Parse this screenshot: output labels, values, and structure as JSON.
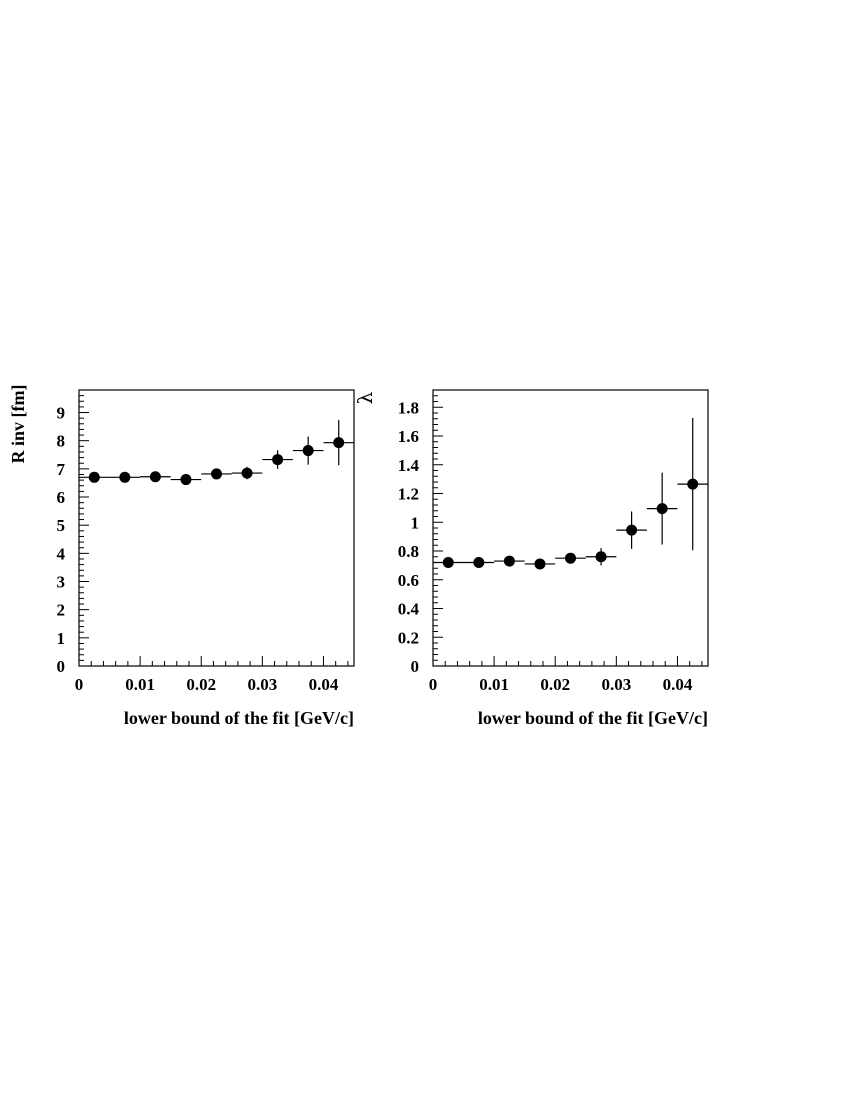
{
  "chart_data": [
    {
      "type": "scatter",
      "ylabel": "R inv [fm]",
      "xlabel": "lower bound of the fit [GeV/c]",
      "xlim": [
        0,
        0.045
      ],
      "ylim": [
        0,
        9.8
      ],
      "x_ticks": [
        0,
        0.01,
        0.02,
        0.03,
        0.04
      ],
      "x_tick_labels": [
        "0",
        "0.01",
        "0.02",
        "0.03",
        "0.04"
      ],
      "y_ticks": [
        0,
        1,
        2,
        3,
        4,
        5,
        6,
        7,
        8,
        9
      ],
      "y_tick_labels": [
        "0",
        "1",
        "2",
        "3",
        "4",
        "5",
        "6",
        "7",
        "8",
        "9"
      ],
      "grid": false,
      "series": [
        {
          "x": [
            0.0025,
            0.0075,
            0.0125,
            0.0175,
            0.0225,
            0.0275,
            0.0325,
            0.0375,
            0.0425
          ],
          "x_err": [
            0.0025,
            0.0025,
            0.0025,
            0.0025,
            0.0025,
            0.0025,
            0.0025,
            0.0025,
            0.0025
          ],
          "y": [
            6.7,
            6.7,
            6.72,
            6.62,
            6.82,
            6.85,
            7.33,
            7.65,
            7.93
          ],
          "y_err": [
            0.08,
            0.1,
            0.1,
            0.12,
            0.14,
            0.22,
            0.33,
            0.5,
            0.8
          ]
        }
      ]
    },
    {
      "type": "scatter",
      "ylabel": "λ",
      "xlabel": "lower bound of the fit [GeV/c]",
      "xlim": [
        0,
        0.045
      ],
      "ylim": [
        0,
        1.92
      ],
      "x_ticks": [
        0,
        0.01,
        0.02,
        0.03,
        0.04
      ],
      "x_tick_labels": [
        "0",
        "0.01",
        "0.02",
        "0.03",
        "0.04"
      ],
      "y_ticks": [
        0,
        0.2,
        0.4,
        0.6,
        0.8,
        1.0,
        1.2,
        1.4,
        1.6,
        1.8
      ],
      "y_tick_labels": [
        "0",
        "0.2",
        "0.4",
        "0.6",
        "0.8",
        "1",
        "1.2",
        "1.4",
        "1.6",
        "1.8"
      ],
      "grid": false,
      "series": [
        {
          "x": [
            0.0025,
            0.0075,
            0.0125,
            0.0175,
            0.0225,
            0.0275,
            0.0325,
            0.0375,
            0.0425
          ],
          "x_err": [
            0.0025,
            0.0025,
            0.0025,
            0.0025,
            0.0025,
            0.0025,
            0.0025,
            0.0025,
            0.0025
          ],
          "y": [
            0.72,
            0.72,
            0.73,
            0.71,
            0.75,
            0.76,
            0.945,
            1.095,
            1.265
          ],
          "y_err": [
            0.01,
            0.012,
            0.015,
            0.015,
            0.03,
            0.06,
            0.13,
            0.25,
            0.46
          ]
        }
      ]
    }
  ]
}
